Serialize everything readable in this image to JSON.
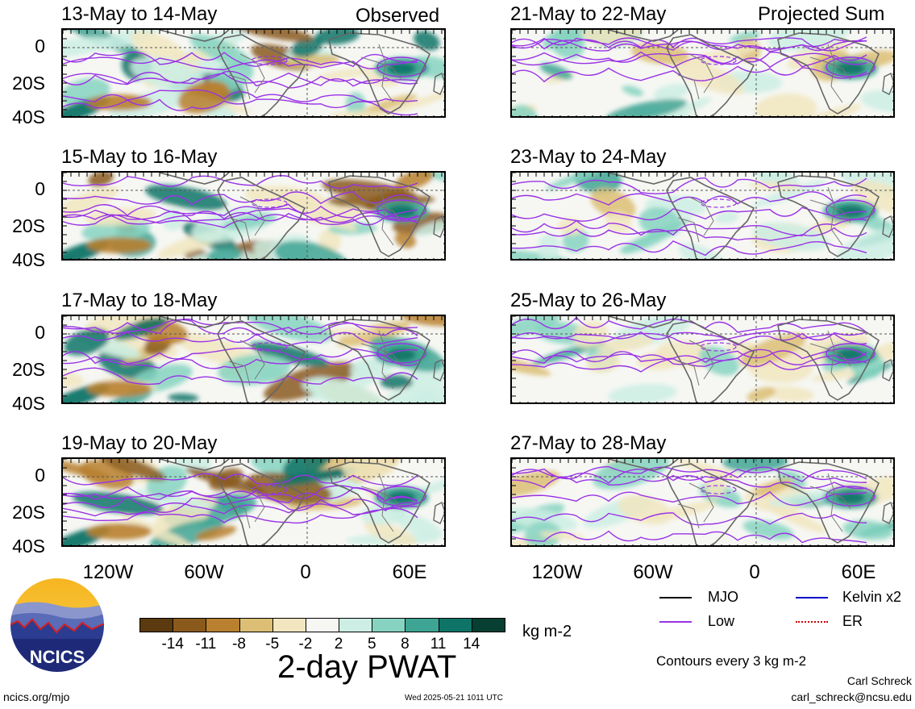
{
  "columns": {
    "left_title": "Observed",
    "right_title": "Projected Sum"
  },
  "panels": [
    {
      "label": "13-May to 14-May"
    },
    {
      "label": "15-May to 16-May"
    },
    {
      "label": "17-May to 18-May"
    },
    {
      "label": "19-May to 20-May"
    },
    {
      "label": "21-May to 22-May"
    },
    {
      "label": "23-May to 24-May"
    },
    {
      "label": "25-May to 26-May"
    },
    {
      "label": "27-May to 28-May"
    }
  ],
  "lat_ticks": [
    "0",
    "20S",
    "40S"
  ],
  "lon_ticks": [
    "120W",
    "60W",
    "0",
    "60E"
  ],
  "colorbar": {
    "colors": [
      "#5a3a0e",
      "#8a5a1c",
      "#b8802f",
      "#dcbe74",
      "#f1e6c0",
      "#f6f7f3",
      "#cdeee4",
      "#86d3c1",
      "#3ea594",
      "#0d7467",
      "#073f32"
    ],
    "ticks": [
      "-14",
      "-11",
      "-8",
      "-5",
      "-2",
      "2",
      "5",
      "8",
      "11",
      "14"
    ],
    "unit": "kg m-2",
    "title": "2-day PWAT"
  },
  "legend": {
    "items": [
      {
        "label": "MJO",
        "color": "#000000"
      },
      {
        "label": "Kelvin x2",
        "color": "#0000cc"
      },
      {
        "label": "Low",
        "color": "#9a32e6"
      },
      {
        "label": "ER",
        "color": "#cc0000"
      }
    ],
    "contours_note": "Contours every 3 kg m-2"
  },
  "logo": {
    "text": "NCICS"
  },
  "footer": {
    "url": "ncics.org/mjo",
    "timestamp": "Wed 2025-05-21 1011 UTC",
    "author": "Carl Schreck",
    "email": "carl_schreck@ncsu.edu"
  }
}
